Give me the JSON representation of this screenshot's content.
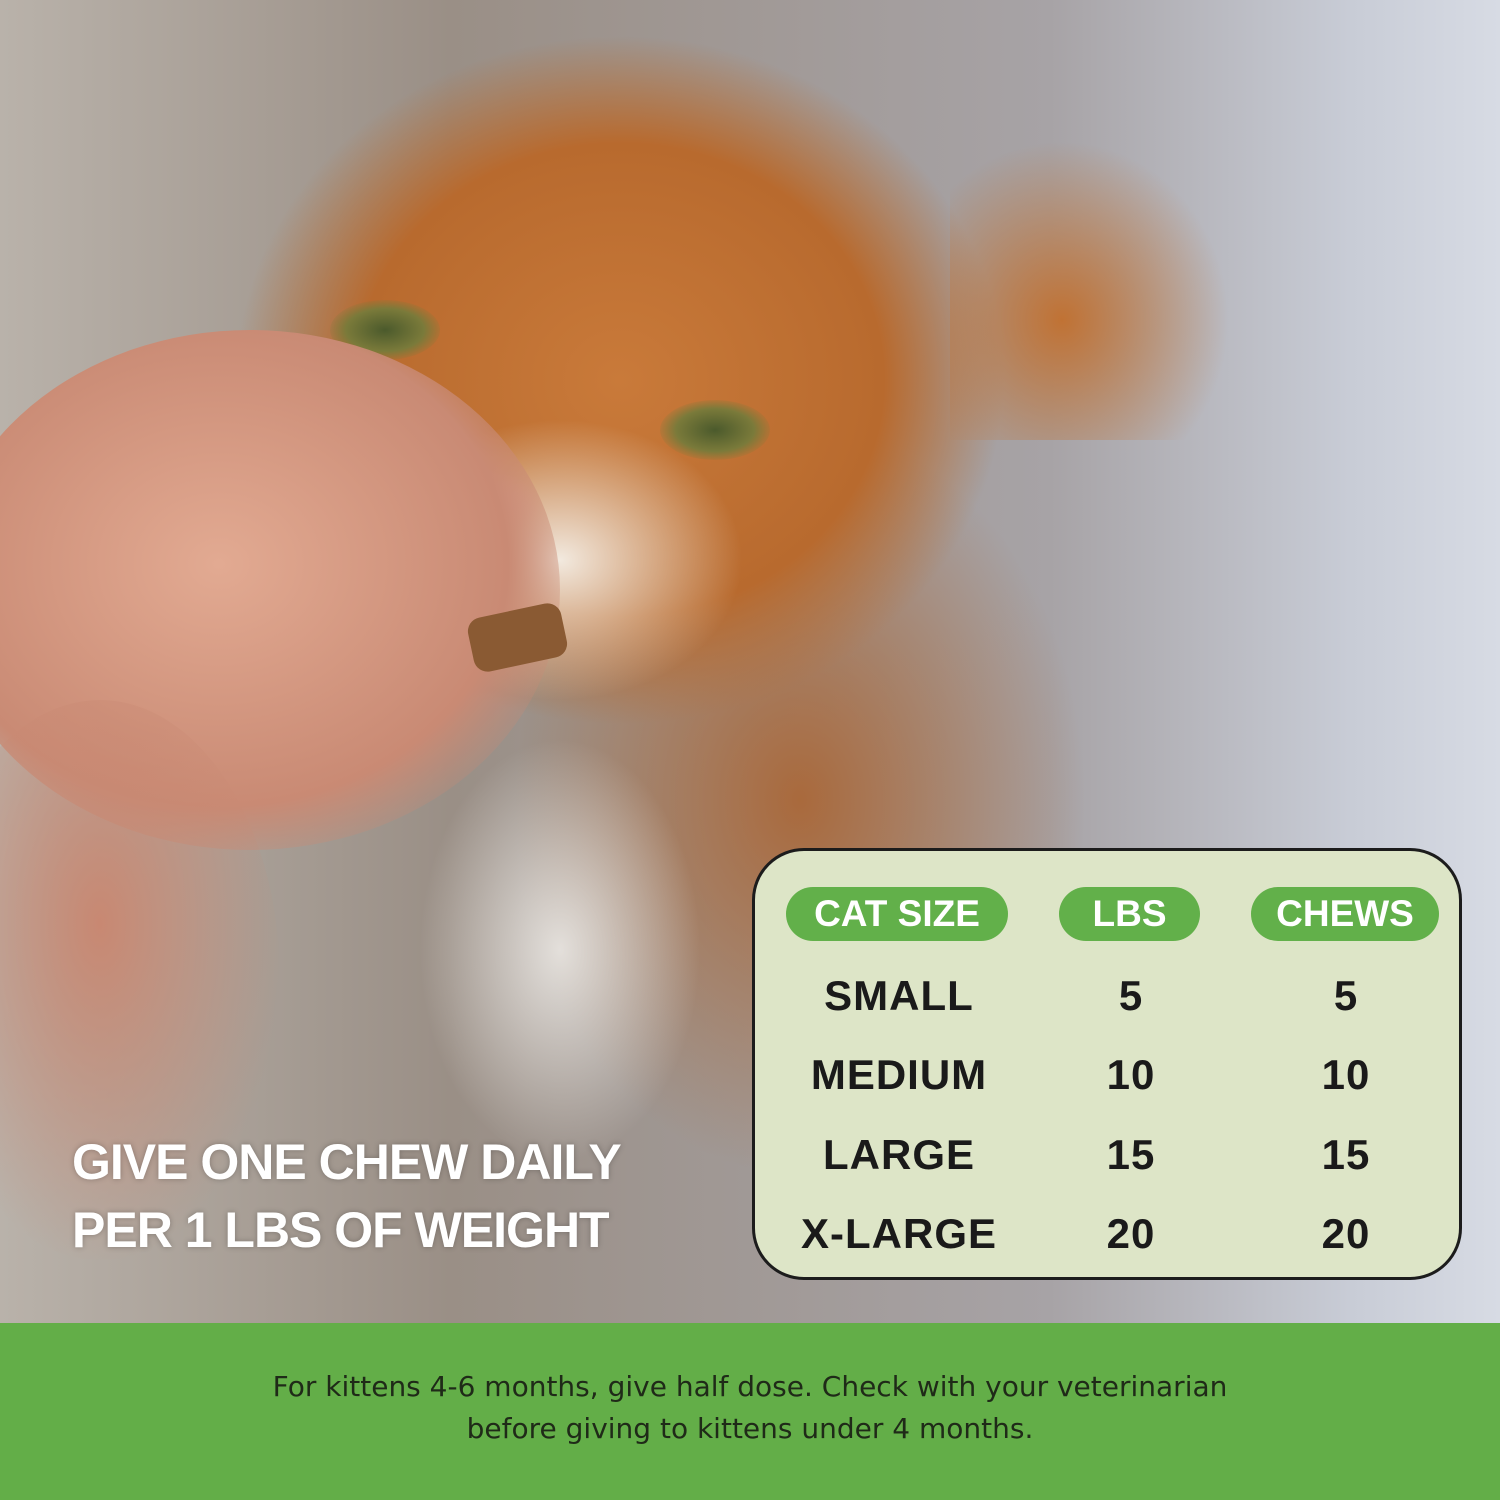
{
  "headline": {
    "line1": "GIVE ONE CHEW DAILY",
    "line2": "PER 1 LBS OF WEIGHT"
  },
  "dosage_table": {
    "headers": [
      "CAT SIZE",
      "LBS",
      "CHEWS"
    ],
    "rows": [
      [
        "SMALL",
        "5",
        "5"
      ],
      [
        "MEDIUM",
        "10",
        "10"
      ],
      [
        "LARGE",
        "15",
        "15"
      ],
      [
        "X-LARGE",
        "20",
        "20"
      ]
    ]
  },
  "footer": {
    "line1": "For kittens 4-6 months, give half dose. Check with your veterinarian",
    "line2": "before giving to kittens under 4 months."
  },
  "colors": {
    "accent_green": "#62b04a",
    "table_background": "#dde5c7",
    "footer_green": "#63ae48"
  }
}
